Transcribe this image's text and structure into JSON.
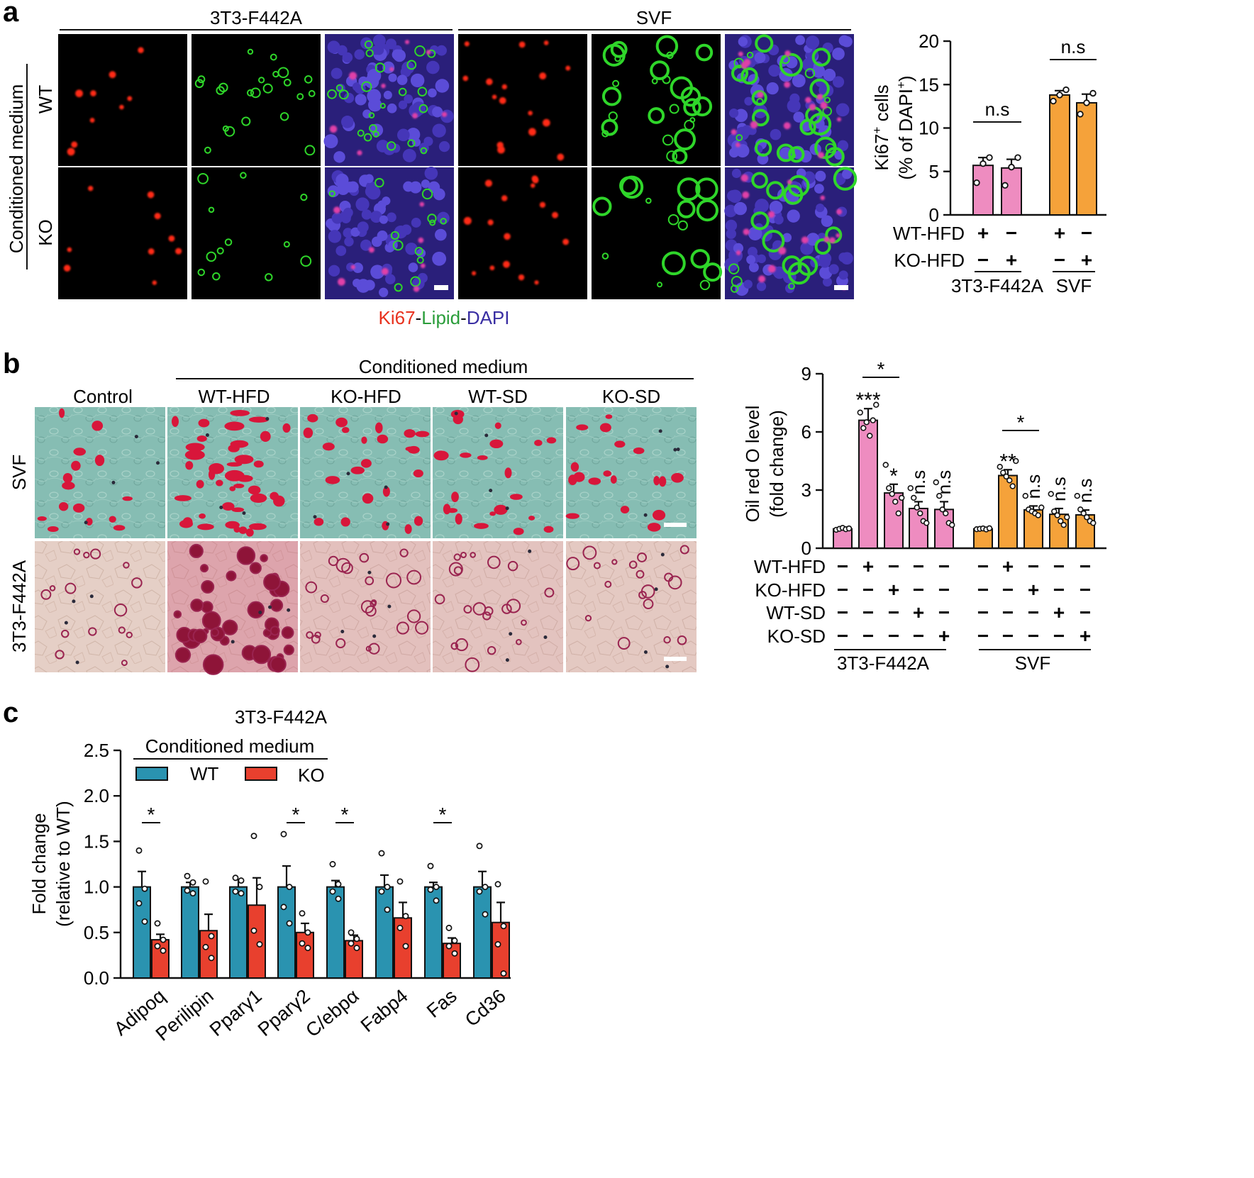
{
  "panel_a": {
    "letter": "a",
    "group_labels": [
      "3T3-F442A",
      "SVF"
    ],
    "side_label": "Conditioned medium",
    "row_labels": [
      "WT",
      "KO"
    ],
    "stain_legend": {
      "ki67": "Ki67",
      "dash1": "-",
      "lipid": "Lipid",
      "dash2": "-",
      "dapi": "DAPI"
    },
    "colors": {
      "ki67": "#e8321e",
      "lipid": "#2a9d3a",
      "dapi": "#3a2fa3",
      "pink": "#ee8cc0",
      "orange": "#f5a23a"
    }
  },
  "panel_b": {
    "letter": "b",
    "header": "Conditioned medium",
    "column_labels": [
      "Control",
      "WT-HFD",
      "KO-HFD",
      "WT-SD",
      "KO-SD"
    ],
    "row_labels": [
      "SVF",
      "3T3-F442A"
    ]
  },
  "panel_c": {
    "letter": "c"
  },
  "chart_data": [
    {
      "id": "a-ki67",
      "type": "bar",
      "ylabel_main": "Ki67",
      "ylabel_sup": "+",
      "ylabel_rest": " cells",
      "ylabel_line2": "(% of DAPI",
      "ylabel_line2_sup": "+",
      "ylabel_line2_end": ")",
      "ylim": [
        0,
        20
      ],
      "yticks": [
        "0",
        "5",
        "10",
        "15",
        "20"
      ],
      "values": [
        5.7,
        5.4,
        13.8,
        12.9
      ],
      "errors": [
        0.9,
        1.0,
        0.5,
        1.0
      ],
      "points": [
        [
          3.7,
          5.9,
          6.6
        ],
        [
          3.4,
          5.5,
          6.6
        ],
        [
          13.1,
          13.8,
          14.4
        ],
        [
          11.6,
          12.9,
          14.0
        ]
      ],
      "significance": [
        "n.s",
        "n.s"
      ],
      "conditions": [
        {
          "label": "WT-HFD",
          "marks": [
            "+",
            "−",
            "+",
            "−"
          ]
        },
        {
          "label": "KO-HFD",
          "marks": [
            "−",
            "+",
            "−",
            "+"
          ]
        }
      ],
      "groups": [
        "3T3-F442A",
        "SVF"
      ]
    },
    {
      "id": "b-oilred",
      "type": "bar",
      "ylabel_line1": "Oil red O level",
      "ylabel_line2": "(fold change)",
      "ylim": [
        0,
        9
      ],
      "yticks": [
        "0",
        "3",
        "6",
        "9"
      ],
      "values": [
        1.0,
        6.6,
        2.85,
        2.05,
        2.0,
        1.0,
        3.75,
        1.98,
        1.75,
        1.72
      ],
      "errors": [
        0.05,
        0.6,
        0.45,
        0.35,
        0.4,
        0.04,
        0.3,
        0.2,
        0.3,
        0.25
      ],
      "points": [
        [
          0.95,
          1.0,
          1.05,
          0.98,
          1.02
        ],
        [
          7.0,
          6.2,
          6.5,
          5.8,
          6.6,
          7.4
        ],
        [
          4.3,
          3.1,
          2.8,
          2.4,
          1.8,
          2.6
        ],
        [
          3.1,
          2.6,
          2.1,
          1.8,
          1.4,
          1.3
        ],
        [
          3.4,
          2.7,
          2.0,
          1.8,
          1.3,
          1.2
        ],
        [
          0.98,
          1.0,
          1.02,
          0.97,
          1.03
        ],
        [
          4.2,
          3.9,
          3.7,
          3.5,
          3.2,
          4.5
        ],
        [
          2.7,
          2.0,
          1.9,
          1.8,
          1.7,
          2.1
        ],
        [
          2.8,
          1.9,
          1.7,
          1.4,
          1.2,
          1.6
        ],
        [
          2.7,
          2.0,
          1.8,
          1.6,
          1.4,
          1.3
        ]
      ],
      "bar_marks": [
        "",
        "***",
        "*",
        "n.s",
        "n.s",
        "",
        "**",
        "n.s",
        "n.s",
        "n.s"
      ],
      "bracket_marks": [
        "*",
        "*"
      ],
      "conditions": [
        {
          "label": "WT-HFD",
          "marks": [
            "−",
            "+",
            "−",
            "−",
            "−",
            "−",
            "+",
            "−",
            "−",
            "−"
          ]
        },
        {
          "label": "KO-HFD",
          "marks": [
            "−",
            "−",
            "+",
            "−",
            "−",
            "−",
            "−",
            "+",
            "−",
            "−"
          ]
        },
        {
          "label": "WT-SD",
          "marks": [
            "−",
            "−",
            "−",
            "+",
            "−",
            "−",
            "−",
            "−",
            "+",
            "−"
          ]
        },
        {
          "label": "KO-SD",
          "marks": [
            "−",
            "−",
            "−",
            "−",
            "+",
            "−",
            "−",
            "−",
            "−",
            "+"
          ]
        }
      ],
      "groups": [
        "3T3-F442A",
        "SVF"
      ]
    },
    {
      "id": "c-fold",
      "type": "bar",
      "title": "3T3-F442A",
      "legend_header": "Conditioned medium",
      "series": [
        {
          "name": "WT",
          "color": "#2a93b0",
          "values": [
            1.0,
            1.0,
            1.0,
            1.0,
            1.0,
            1.0,
            1.0,
            1.0
          ],
          "errors": [
            0.17,
            0.05,
            0.08,
            0.23,
            0.07,
            0.13,
            0.05,
            0.17
          ]
        },
        {
          "name": "KO",
          "color": "#e8402e",
          "values": [
            0.42,
            0.52,
            0.8,
            0.5,
            0.41,
            0.66,
            0.38,
            0.61
          ],
          "errors": [
            0.06,
            0.18,
            0.3,
            0.1,
            0.06,
            0.17,
            0.06,
            0.22
          ]
        }
      ],
      "points": [
        [
          [
            1.4,
            0.98,
            0.82,
            0.62
          ],
          [
            0.6,
            0.42,
            0.35,
            0.3
          ]
        ],
        [
          [
            1.12,
            1.05,
            0.96,
            0.93
          ],
          [
            1.06,
            0.46,
            0.34,
            0.22
          ]
        ],
        [
          [
            1.1,
            1.07,
            0.95,
            0.93
          ],
          [
            1.56,
            1.0,
            0.52,
            0.37
          ]
        ],
        [
          [
            1.58,
            1.0,
            0.78,
            0.6
          ],
          [
            0.71,
            0.5,
            0.38,
            0.33
          ]
        ],
        [
          [
            1.25,
            1.03,
            0.95,
            0.87
          ],
          [
            0.5,
            0.43,
            0.38,
            0.33
          ]
        ],
        [
          [
            1.37,
            1.0,
            0.95,
            0.75
          ],
          [
            1.06,
            0.68,
            0.55,
            0.35
          ]
        ],
        [
          [
            1.23,
            1.0,
            0.97,
            0.85
          ],
          [
            0.55,
            0.41,
            0.35,
            0.27
          ]
        ],
        [
          [
            1.45,
            1.0,
            0.95,
            0.7
          ],
          [
            1.03,
            0.57,
            0.37,
            0.05
          ]
        ]
      ],
      "categories": [
        "Adipoq",
        "Perilipin",
        "Pparγ1",
        "Pparγ2",
        "C/ebpα",
        "Fabp4",
        "Fas",
        "Cd36"
      ],
      "significance": [
        "*",
        "",
        "",
        "*",
        "*",
        "",
        "*",
        ""
      ],
      "ylabel_line1": "Fold change",
      "ylabel_line2": "(relative to WT)",
      "ylim": [
        0,
        2.5
      ],
      "yticks": [
        "0.0",
        "0.5",
        "1.0",
        "1.5",
        "2.0",
        "2.5"
      ]
    }
  ]
}
